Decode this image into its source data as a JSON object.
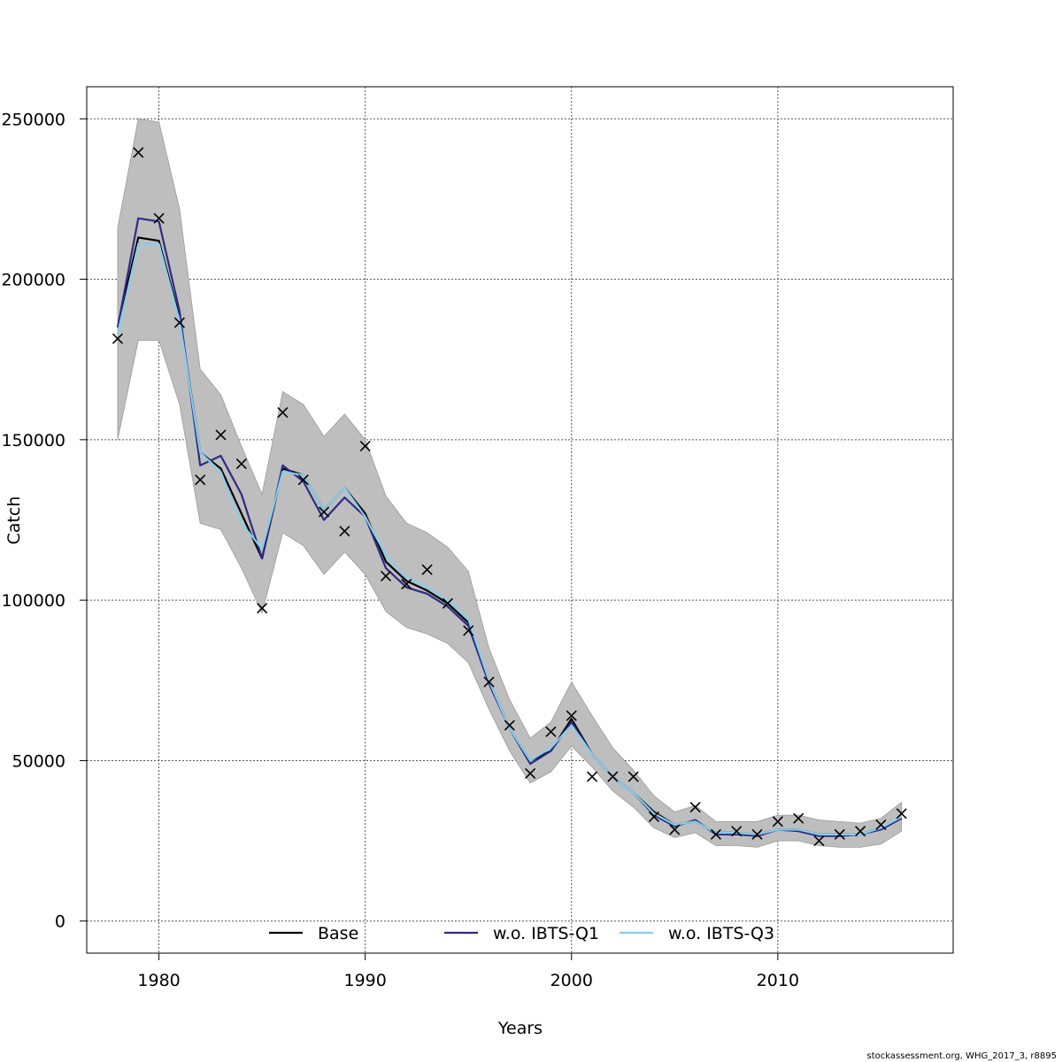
{
  "chart_data": {
    "type": "line",
    "xlabel": "Years",
    "ylabel": "Catch",
    "xlim": [
      1976.5,
      2018.5
    ],
    "ylim": [
      -10000,
      260000
    ],
    "x_ticks": [
      1980,
      1990,
      2000,
      2010
    ],
    "x_tick_labels": [
      "1980",
      "1990",
      "2000",
      "2010"
    ],
    "y_ticks": [
      0,
      50000,
      100000,
      150000,
      200000,
      250000
    ],
    "y_tick_labels": [
      "0",
      "50000",
      "100000",
      "150000",
      "200000",
      "250000"
    ],
    "grid": true,
    "legend_position": "bottom",
    "years": [
      1978,
      1979,
      1980,
      1981,
      1982,
      1983,
      1984,
      1985,
      1986,
      1987,
      1988,
      1989,
      1990,
      1991,
      1992,
      1993,
      1994,
      1995,
      1996,
      1997,
      1998,
      1999,
      2000,
      2001,
      2002,
      2003,
      2004,
      2005,
      2006,
      2007,
      2008,
      2009,
      2010,
      2011,
      2012,
      2013,
      2014,
      2015,
      2016
    ],
    "confidence_band": {
      "color": "#bebebe",
      "upper": [
        216000,
        250000,
        249000,
        222000,
        172000,
        164000,
        148000,
        133000,
        165000,
        161000,
        151000,
        158000,
        150000,
        132500,
        124000,
        121000,
        116500,
        109000,
        85000,
        69000,
        57000,
        62000,
        74500,
        64000,
        54000,
        47000,
        39000,
        34000,
        36000,
        31000,
        31000,
        31000,
        33000,
        33000,
        31500,
        31000,
        30500,
        32000,
        37000
      ],
      "lower": [
        150000,
        181000,
        181000,
        161000,
        124000,
        122000,
        110000,
        96000,
        121000,
        117000,
        108000,
        115000,
        108000,
        96500,
        91500,
        89500,
        86500,
        80500,
        66000,
        53000,
        43000,
        46500,
        54500,
        48000,
        40500,
        35500,
        29000,
        26000,
        27500,
        23500,
        23500,
        23000,
        25000,
        25000,
        23500,
        23000,
        23000,
        24000,
        28000
      ]
    },
    "series": [
      {
        "name": "Base",
        "color": "#000000",
        "values": [
          185000,
          213000,
          212000,
          188000,
          146000,
          141000,
          127000,
          113000,
          141000,
          139000,
          128000,
          135000,
          127000,
          112000,
          106000,
          103000,
          99000,
          93000,
          75000,
          60000,
          50000,
          53000,
          63000,
          52000,
          45000,
          40000,
          34000,
          30000,
          31000,
          27500,
          27500,
          27000,
          28500,
          28500,
          27000,
          27000,
          27000,
          29000,
          32000
        ]
      },
      {
        "name": "w.o. IBTS-Q1",
        "color": "#2f2a84",
        "values": [
          185000,
          219000,
          218000,
          190000,
          142000,
          145000,
          133000,
          113000,
          142000,
          137000,
          125000,
          132000,
          126000,
          110000,
          104000,
          102000,
          98000,
          92000,
          74000,
          60000,
          49000,
          53000,
          62000,
          52000,
          45000,
          40000,
          33000,
          29500,
          31500,
          27000,
          27000,
          26500,
          28500,
          28000,
          26500,
          26500,
          27000,
          28500,
          32000
        ]
      },
      {
        "name": "w.o. IBTS-Q3",
        "color": "#87ceeb",
        "values": [
          183000,
          211000,
          211000,
          187000,
          146000,
          140000,
          124000,
          116000,
          140000,
          139000,
          128000,
          135000,
          126000,
          114000,
          107000,
          104000,
          100000,
          94000,
          75000,
          60000,
          50000,
          54000,
          61000,
          52000,
          45000,
          40000,
          33500,
          30000,
          31000,
          27500,
          27500,
          27000,
          28500,
          28500,
          27000,
          27000,
          27000,
          29000,
          32500
        ]
      }
    ],
    "observed": {
      "marker": "x",
      "values": [
        181500,
        239500,
        219000,
        186500,
        137500,
        151500,
        142500,
        97500,
        158500,
        137500,
        127500,
        121500,
        148000,
        107500,
        105000,
        109500,
        99000,
        90500,
        74500,
        61000,
        46000,
        59000,
        64000,
        45000,
        45000,
        45000,
        32500,
        28500,
        35500,
        27000,
        28000,
        27000,
        31000,
        32000,
        25000,
        27000,
        28000,
        30000,
        33500
      ]
    }
  },
  "footer": "stockassessment.org, WHG_2017_3, r8895"
}
